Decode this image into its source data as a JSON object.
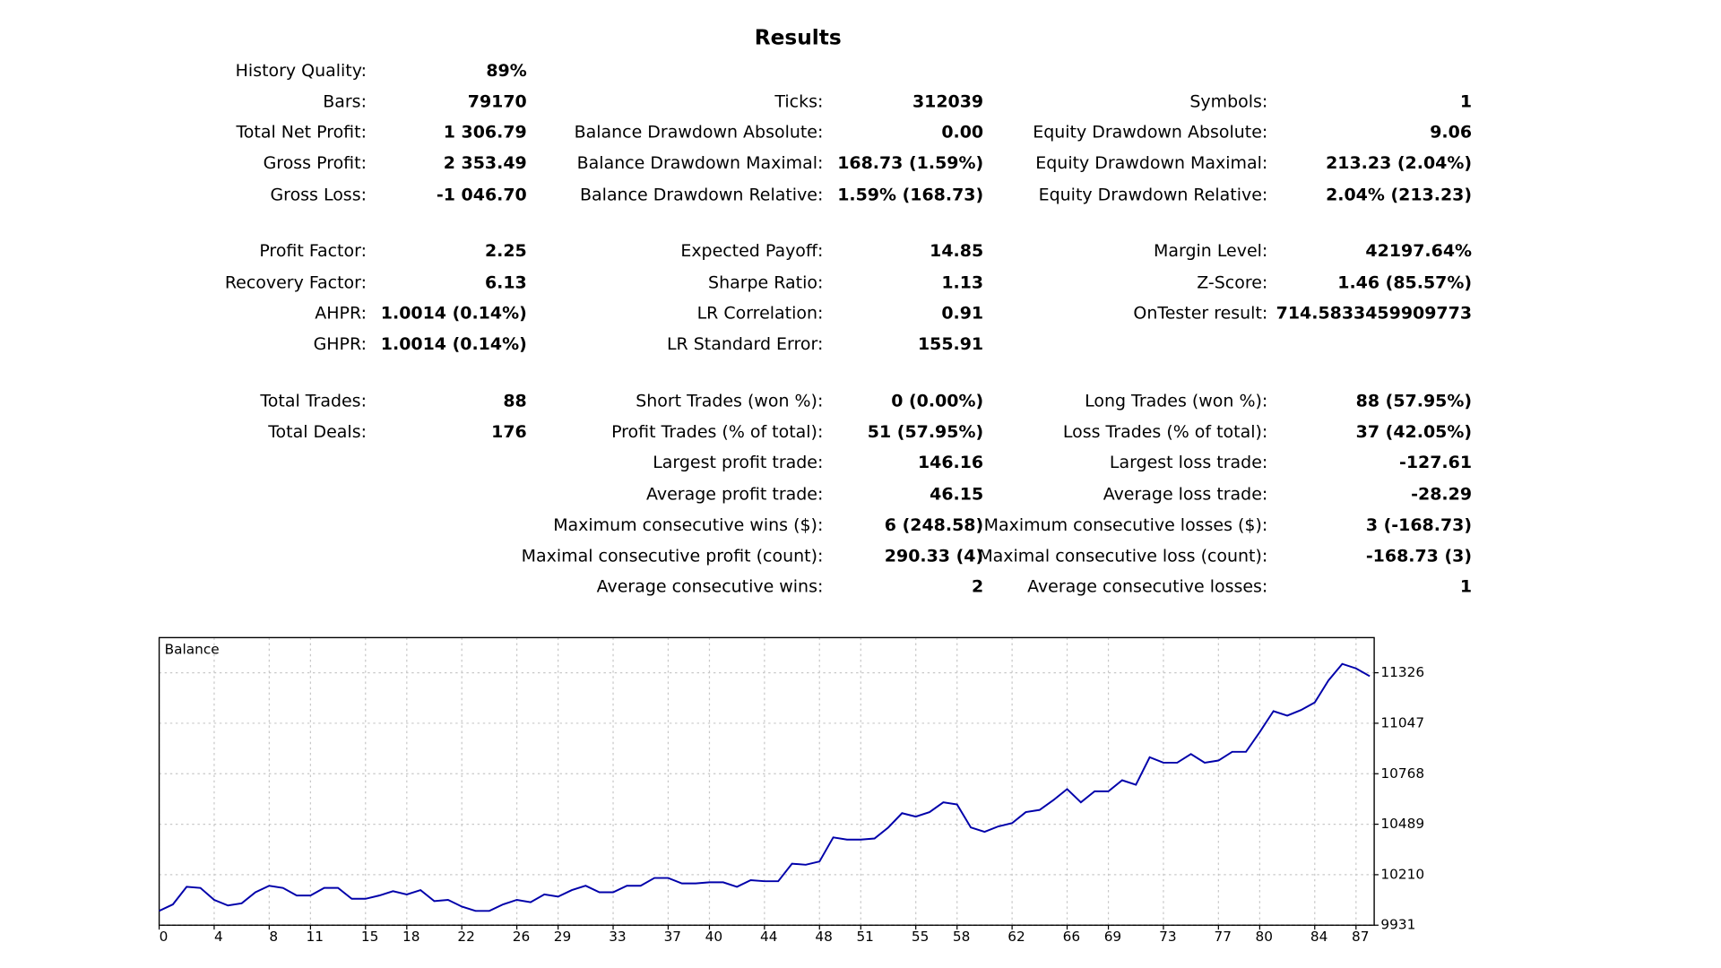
{
  "results": {
    "title": "Results",
    "rows": [
      [
        {
          "label": "History Quality:",
          "value": "89%"
        },
        null,
        null
      ],
      [
        {
          "label": "Bars:",
          "value": "79170"
        },
        {
          "label": "Ticks:",
          "value": "312039"
        },
        {
          "label": "Symbols:",
          "value": "1"
        }
      ],
      [
        {
          "label": "Total Net Profit:",
          "value": "1 306.79"
        },
        {
          "label": "Balance Drawdown Absolute:",
          "value": "0.00"
        },
        {
          "label": "Equity Drawdown Absolute:",
          "value": "9.06"
        }
      ],
      [
        {
          "label": "Gross Profit:",
          "value": "2 353.49"
        },
        {
          "label": "Balance Drawdown Maximal:",
          "value": "168.73 (1.59%)"
        },
        {
          "label": "Equity Drawdown Maximal:",
          "value": "213.23 (2.04%)"
        }
      ],
      [
        {
          "label": "Gross Loss:",
          "value": "-1 046.70"
        },
        {
          "label": "Balance Drawdown Relative:",
          "value": "1.59% (168.73)"
        },
        {
          "label": "Equity Drawdown Relative:",
          "value": "2.04% (213.23)"
        }
      ],
      [
        {
          "label": "Profit Factor:",
          "value": "2.25"
        },
        {
          "label": "Expected Payoff:",
          "value": "14.85"
        },
        {
          "label": "Margin Level:",
          "value": "42197.64%"
        }
      ],
      [
        {
          "label": "Recovery Factor:",
          "value": "6.13"
        },
        {
          "label": "Sharpe Ratio:",
          "value": "1.13"
        },
        {
          "label": "Z-Score:",
          "value": "1.46 (85.57%)"
        }
      ],
      [
        {
          "label": "AHPR:",
          "value": "1.0014 (0.14%)"
        },
        {
          "label": "LR Correlation:",
          "value": "0.91"
        },
        {
          "label": "OnTester result:",
          "value": "714.5833459909773"
        }
      ],
      [
        {
          "label": "GHPR:",
          "value": "1.0014 (0.14%)"
        },
        {
          "label": "LR Standard Error:",
          "value": "155.91"
        },
        null
      ],
      [
        {
          "label": "Total Trades:",
          "value": "88"
        },
        {
          "label": "Short Trades (won %):",
          "value": "0 (0.00%)"
        },
        {
          "label": "Long Trades (won %):",
          "value": "88 (57.95%)"
        }
      ],
      [
        {
          "label": "Total Deals:",
          "value": "176"
        },
        {
          "label": "Profit Trades (% of total):",
          "value": "51 (57.95%)"
        },
        {
          "label": "Loss Trades (% of total):",
          "value": "37 (42.05%)"
        }
      ],
      [
        null,
        {
          "label": "Largest profit trade:",
          "value": "146.16"
        },
        {
          "label": "Largest loss trade:",
          "value": "-127.61"
        }
      ],
      [
        null,
        {
          "label": "Average profit trade:",
          "value": "46.15"
        },
        {
          "label": "Average loss trade:",
          "value": "-28.29"
        }
      ],
      [
        null,
        {
          "label": "Maximum consecutive wins ($):",
          "value": "6 (248.58)"
        },
        {
          "label": "Maximum consecutive losses ($):",
          "value": "3 (-168.73)"
        }
      ],
      [
        null,
        {
          "label": "Maximal consecutive profit (count):",
          "value": "290.33 (4)"
        },
        {
          "label": "Maximal consecutive loss (count):",
          "value": "-168.73 (3)"
        }
      ],
      [
        null,
        {
          "label": "Average consecutive wins:",
          "value": "2"
        },
        {
          "label": "Average consecutive losses:",
          "value": "1"
        }
      ]
    ]
  },
  "chart_data": {
    "type": "line",
    "x": [
      0,
      1,
      2,
      3,
      4,
      5,
      6,
      7,
      8,
      9,
      10,
      11,
      12,
      13,
      14,
      15,
      16,
      17,
      18,
      19,
      20,
      21,
      22,
      23,
      24,
      25,
      26,
      27,
      28,
      29,
      30,
      31,
      32,
      33,
      34,
      35,
      36,
      37,
      38,
      39,
      40,
      41,
      42,
      43,
      44,
      45,
      46,
      47,
      48,
      49,
      50,
      51,
      52,
      53,
      54,
      55,
      56,
      57,
      58,
      59,
      60,
      61,
      62,
      63,
      64,
      65,
      66,
      67,
      68,
      69,
      70,
      71,
      72,
      73,
      74,
      75,
      76,
      77,
      78,
      79,
      80,
      81,
      82,
      83,
      84,
      85,
      86,
      87,
      88
    ],
    "series": [
      {
        "name": "Balance",
        "color": "#0000aa",
        "values": [
          10010,
          10046,
          10143,
          10137,
          10071,
          10040,
          10052,
          10113,
          10149,
          10137,
          10095,
          10095,
          10137,
          10137,
          10077,
          10077,
          10095,
          10119,
          10101,
          10125,
          10064,
          10071,
          10034,
          10010,
          10010,
          10046,
          10071,
          10058,
          10101,
          10089,
          10125,
          10149,
          10113,
          10113,
          10149,
          10149,
          10192,
          10192,
          10162,
          10162,
          10168,
          10168,
          10143,
          10180,
          10174,
          10174,
          10271,
          10265,
          10283,
          10416,
          10404,
          10404,
          10410,
          10471,
          10550,
          10531,
          10556,
          10610,
          10598,
          10471,
          10447,
          10477,
          10495,
          10556,
          10568,
          10622,
          10683,
          10610,
          10671,
          10671,
          10732,
          10707,
          10859,
          10829,
          10829,
          10877,
          10829,
          10841,
          10889,
          10889,
          10998,
          11114,
          11089,
          11120,
          11162,
          11284,
          11375,
          11350,
          11307
        ]
      }
    ],
    "xlim": [
      0,
      88
    ],
    "xticks": [
      0,
      4,
      8,
      11,
      15,
      18,
      22,
      26,
      29,
      33,
      37,
      40,
      44,
      48,
      51,
      55,
      58,
      62,
      66,
      69,
      73,
      77,
      80,
      84,
      87
    ],
    "ylim": [
      9931,
      11520
    ],
    "yticks": [
      9931,
      10210,
      10489,
      10768,
      11047,
      11326
    ],
    "grid": true
  }
}
